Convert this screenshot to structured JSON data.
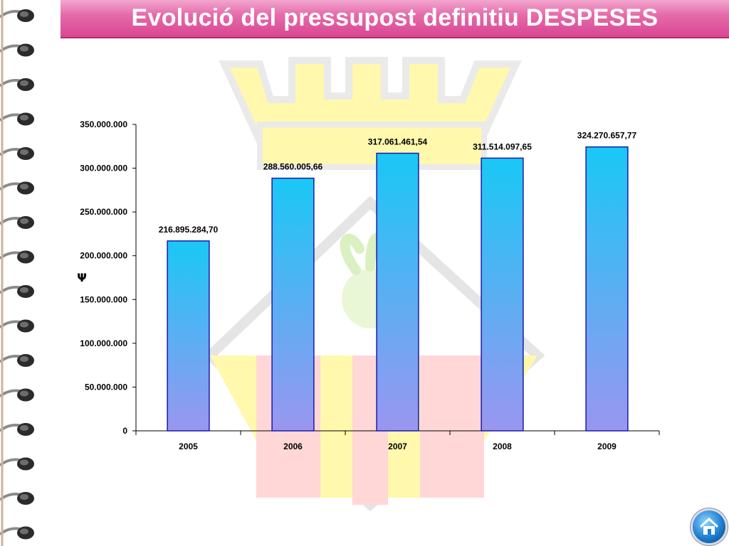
{
  "title": "Evolució del pressupost definitiu DESPESES",
  "colors": {
    "title_bar": "#e66bab",
    "bar_top": "#19c8f5",
    "bar_bottom": "#9a96f0",
    "bar_border": "#1a1aa8"
  },
  "icons": {
    "home": "home-icon",
    "binding": "spiral-binding-icon"
  },
  "chart_data": {
    "type": "bar",
    "categories": [
      "2005",
      "2006",
      "2007",
      "2008",
      "2009"
    ],
    "values": [
      216895284.7,
      288560005.66,
      317061461.54,
      311514097.65,
      324270657.77
    ],
    "data_labels": [
      "216.895.284,70",
      "288.560.005,66",
      "317.061.461,54",
      "311.514.097,65",
      "324.270.657,77"
    ],
    "ylabel": "Ψ",
    "ylim": [
      0,
      350000000
    ],
    "yticks": [
      0,
      50000000,
      100000000,
      150000000,
      200000000,
      250000000,
      300000000,
      350000000
    ],
    "ytick_labels": [
      "0",
      "50.000.000",
      "100.000.000",
      "150.000.000",
      "200.000.000",
      "250.000.000",
      "300.000.000",
      "350.000.000"
    ],
    "grid": false,
    "legend": "none"
  }
}
